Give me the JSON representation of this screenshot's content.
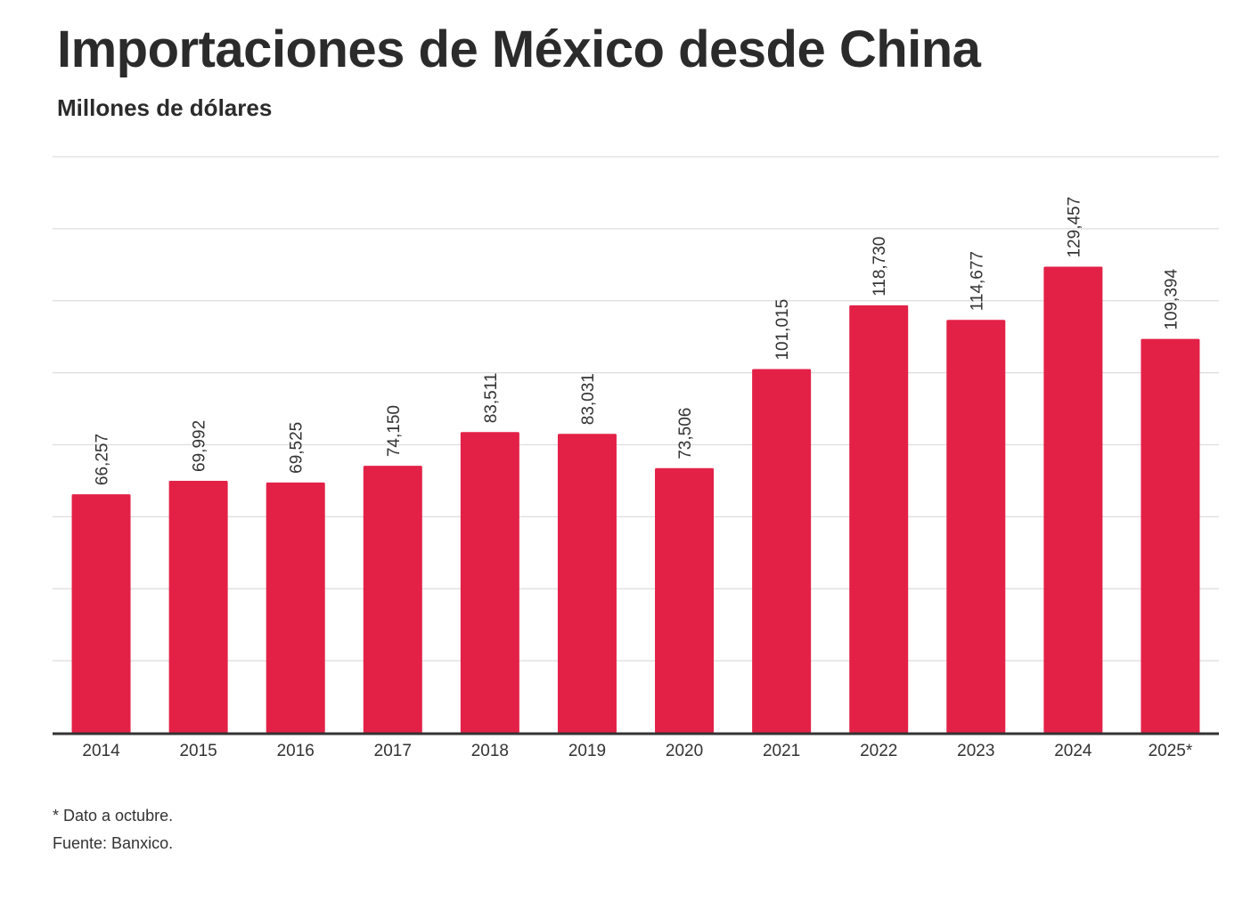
{
  "header": {
    "title": "Importaciones de México desde China",
    "subtitle": "Millones de dólares"
  },
  "footer": {
    "note": "* Dato a octubre.",
    "source": "Fuente: Banxico."
  },
  "colors": {
    "bar": "#e32147",
    "gridline": "#dddddd",
    "baseline": "#333333",
    "text": "#333333"
  },
  "chart_data": {
    "type": "bar",
    "title": "Importaciones de México desde China",
    "subtitle": "Millones de dólares",
    "xlabel": "",
    "ylabel": "",
    "categories": [
      "2014",
      "2015",
      "2016",
      "2017",
      "2018",
      "2019",
      "2020",
      "2021",
      "2022",
      "2023",
      "2024",
      "2025*"
    ],
    "values": [
      66257,
      69992,
      69525,
      74150,
      83511,
      83031,
      73506,
      101015,
      118730,
      114677,
      129457,
      109394
    ],
    "value_labels": [
      "66,257",
      "69,992",
      "69,525",
      "74,150",
      "83,511",
      "83,031",
      "73,506",
      "101,015",
      "118,730",
      "114,677",
      "129,457",
      "109,394"
    ],
    "ylim": [
      0,
      160000
    ],
    "gridlines": [
      20000,
      40000,
      60000,
      80000,
      100000,
      120000,
      140000,
      160000
    ],
    "y_tick_labels_visible": false,
    "grid": true
  }
}
